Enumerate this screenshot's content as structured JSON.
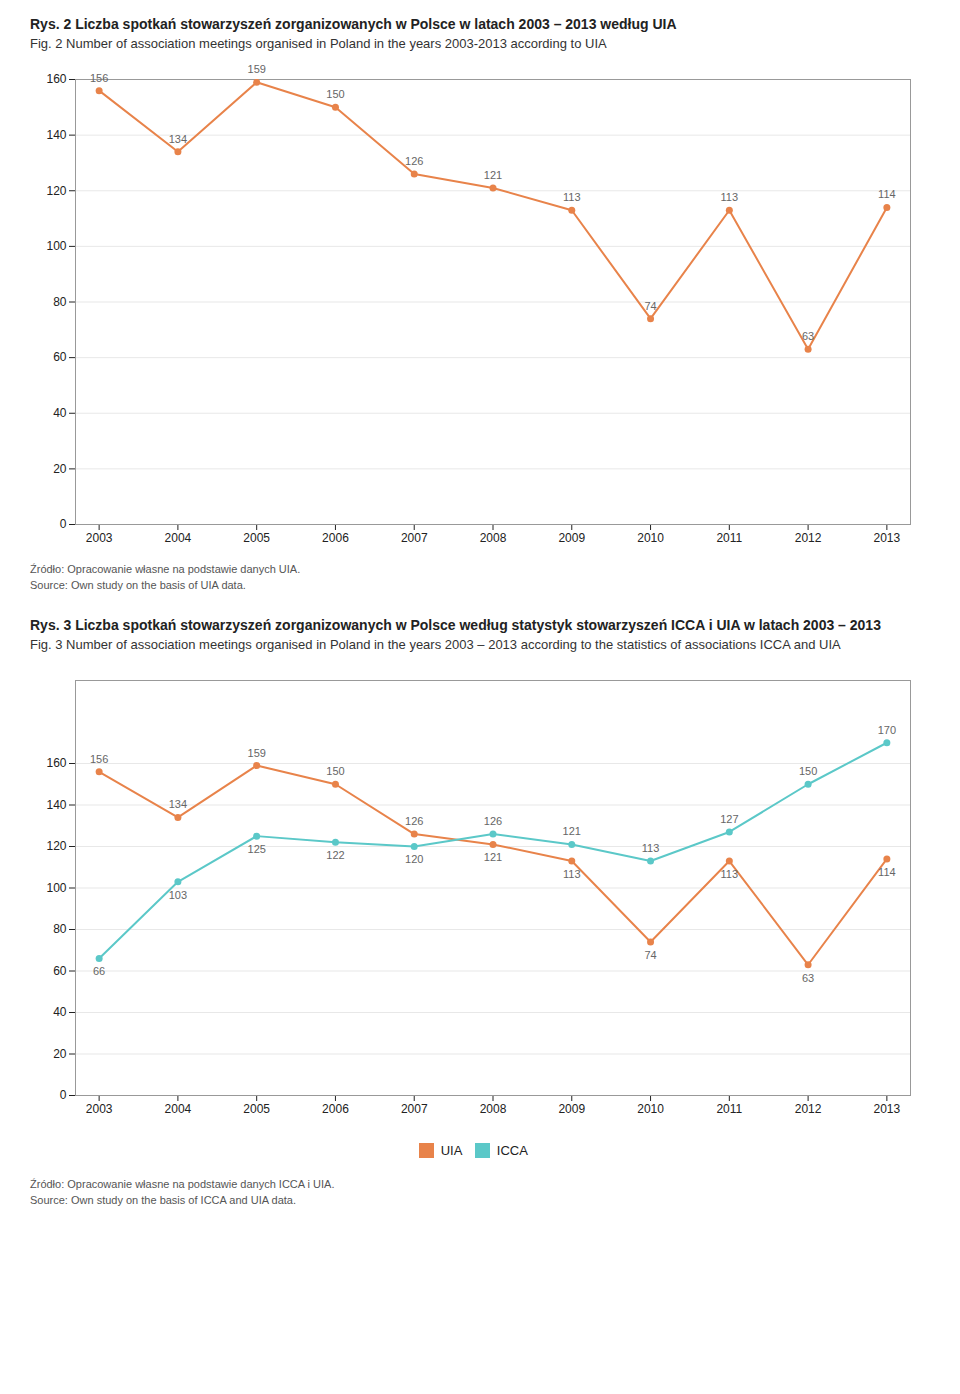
{
  "chart_data": [
    {
      "type": "line",
      "title": "Rys. 2 Liczba spotkań stowarzyszeń zorganizowanych w Polsce w latach 2003 – 2013 według UIA",
      "subtitle": "Fig. 2 Number of association meetings organised in Poland in the years 2003-2013 according to UIA",
      "x": [
        2003,
        2004,
        2005,
        2006,
        2007,
        2008,
        2009,
        2010,
        2011,
        2012,
        2013
      ],
      "values": [
        156,
        134,
        159,
        150,
        126,
        121,
        113,
        74,
        113,
        63,
        114
      ],
      "color": "#E8834A",
      "marker": "circle",
      "xlim": [
        2002.7,
        2013.3
      ],
      "xticks": [
        2003,
        2004,
        2005,
        2006,
        2007,
        2008,
        2009,
        2010,
        2011,
        2012,
        2013
      ],
      "ylim": [
        0,
        160
      ],
      "yticks": [
        0,
        20,
        40,
        60,
        80,
        100,
        120,
        140,
        160
      ],
      "grid": true,
      "data_labels": true,
      "annotations": [
        "Źródło: Opracowanie własne na podstawie danych UIA.",
        "Source: Own study on the basis of UIA data."
      ]
    },
    {
      "type": "line",
      "title": "Rys. 3 Liczba spotkań stowarzyszeń zorganizowanych w Polsce według statystyk stowarzyszeń ICCA i UIA w latach 2003 – 2013",
      "subtitle": "Fig. 3 Number of association meetings organised in Poland in the years 2003 – 2013 according to the statistics of associations ICCA and UIA",
      "x": [
        2003,
        2004,
        2005,
        2006,
        2007,
        2008,
        2009,
        2010,
        2011,
        2012,
        2013
      ],
      "series": [
        {
          "name": "UIA",
          "color": "#E8834A",
          "values": [
            156,
            134,
            159,
            150,
            126,
            121,
            113,
            74,
            113,
            63,
            114
          ]
        },
        {
          "name": "ICCA",
          "color": "#5BC8C8",
          "values": [
            66,
            103,
            125,
            122,
            120,
            126,
            121,
            113,
            127,
            150,
            170
          ]
        }
      ],
      "marker": "circle",
      "xlim": [
        2002.7,
        2013.3
      ],
      "xticks": [
        2003,
        2004,
        2005,
        2006,
        2007,
        2008,
        2009,
        2010,
        2011,
        2012,
        2013
      ],
      "ylim": [
        0,
        200
      ],
      "yticks": [
        0,
        20,
        40,
        60,
        80,
        100,
        120,
        140,
        160
      ],
      "grid": true,
      "legend": "bottom",
      "data_labels": true,
      "annotations": [
        "Źródło: Opracowanie własne na podstawie danych ICCA i UIA.",
        "Source: Own study on the basis of ICCA and UIA data."
      ]
    }
  ]
}
